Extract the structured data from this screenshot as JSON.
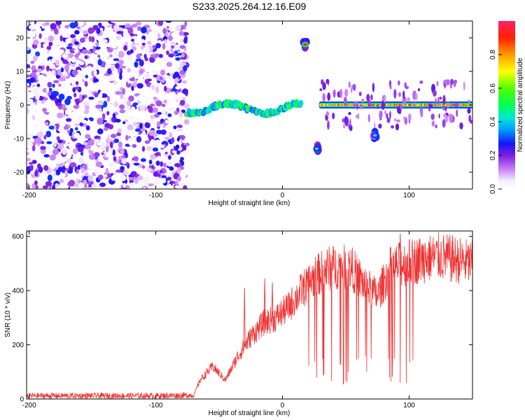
{
  "figure_title": "S233.2025.264.12.16.E09",
  "colorbar": {
    "label": "Normalized spectral amplitude",
    "ticks": [
      "0.0",
      "0.2",
      "0.4",
      "0.6",
      "0.8"
    ],
    "tick_values": [
      0.0,
      0.2,
      0.4,
      0.6,
      0.8
    ],
    "range": [
      0,
      1
    ]
  },
  "chart_data": [
    {
      "type": "heatmap",
      "title": "S233.2025.264.12.16.E09",
      "xlabel": "Height of straight line (km)",
      "ylabel": "Frequency (Hz)",
      "xlim": [
        -202,
        150
      ],
      "ylim": [
        -25,
        25
      ],
      "xticks": [
        -200,
        -100,
        0,
        100
      ],
      "yticks": [
        -20,
        -10,
        0,
        10,
        20
      ],
      "features": [
        {
          "name": "diffuse noise",
          "x_range": [
            -202,
            -75
          ],
          "description_value_range": [
            0.0,
            0.3
          ]
        },
        {
          "name": "wavy track",
          "x_range": [
            -75,
            15
          ],
          "y_approx": [
            -3,
            1
          ],
          "peak_amplitude": 0.6
        },
        {
          "name": "line 0 Hz",
          "x_range": [
            30,
            150
          ],
          "y": 0,
          "peak_amplitude": 0.95
        },
        {
          "name": "blob 18 Hz",
          "x": 18,
          "y": 18,
          "peak_amplitude": 0.95
        },
        {
          "name": "blob -13 Hz",
          "x": 27,
          "y": -13,
          "peak_amplitude": 0.5
        },
        {
          "name": "blob -9 Hz",
          "x": 73,
          "y": -9,
          "peak_amplitude": 0.45
        }
      ]
    },
    {
      "type": "line",
      "xlabel": "Height of straight line (km)",
      "ylabel": "SNR (10 * v/v)",
      "xlim": [
        -202,
        150
      ],
      "ylim": [
        0,
        620
      ],
      "xticks": [
        -200,
        -100,
        0,
        100
      ],
      "yticks": [
        0,
        200,
        400,
        600
      ],
      "series": [
        {
          "name": "SNR",
          "color": "#ee3333",
          "envelope_x": [
            -202,
            -150,
            -100,
            -70,
            -65,
            -55,
            -45,
            -35,
            -25,
            -15,
            -5,
            5,
            15,
            25,
            35,
            45,
            55,
            65,
            75,
            85,
            95,
            105,
            115,
            125,
            135,
            150
          ],
          "envelope_mean": [
            12,
            12,
            12,
            14,
            70,
            120,
            70,
            160,
            230,
            280,
            300,
            340,
            400,
            450,
            480,
            490,
            480,
            420,
            380,
            480,
            500,
            510,
            520,
            525,
            515,
            500
          ],
          "peaks": [
            {
              "x": 93,
              "value": 610
            },
            {
              "x": -30,
              "value": 410
            },
            {
              "x": -14,
              "value": 445
            },
            {
              "x": -8,
              "value": 430
            }
          ],
          "dropouts_x_range": [
            20,
            112
          ]
        }
      ]
    }
  ]
}
